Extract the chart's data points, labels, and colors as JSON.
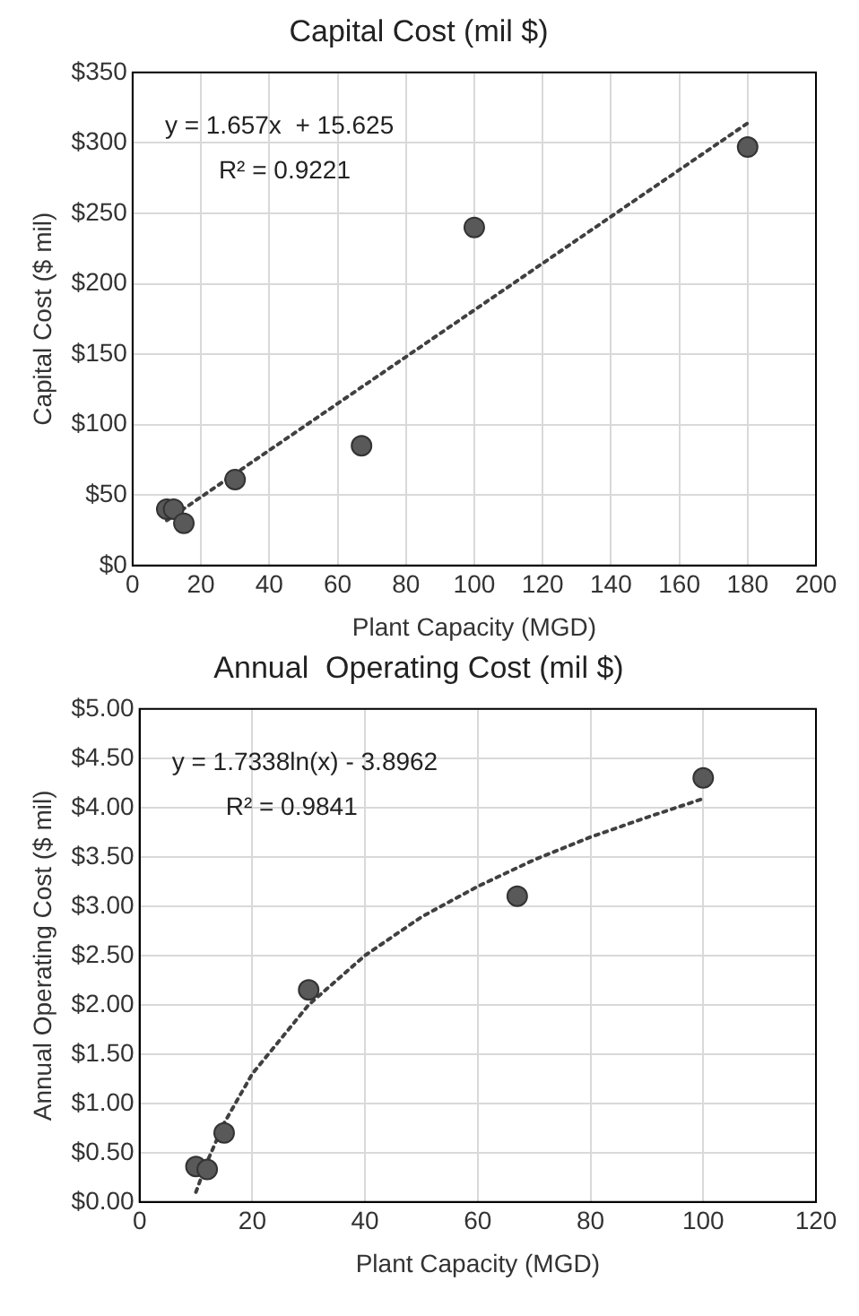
{
  "chart_data": [
    {
      "type": "scatter",
      "title": "Capital Cost (mil $)",
      "xlabel": "Plant Capacity (MGD)",
      "ylabel": "Capital Cost ($ mil)",
      "annotations": [
        "y = 1.657x  + 15.625",
        "R² = 0.9221"
      ],
      "series": [
        {
          "type": "scatter",
          "color": "#595959",
          "marker": "circle",
          "x": [
            10,
            12,
            15,
            30,
            67,
            100,
            180
          ],
          "values": [
            40,
            40,
            30,
            61,
            85,
            240,
            297
          ]
        },
        {
          "type": "line",
          "color": "#404040",
          "marker": "none",
          "line_style": "dotted",
          "x": [
            10,
            180
          ],
          "values": [
            32,
            314
          ]
        }
      ],
      "xlim": [
        0,
        200
      ],
      "xticks": [
        0,
        20,
        40,
        60,
        80,
        100,
        120,
        140,
        160,
        180,
        200
      ],
      "ylim": [
        0,
        350
      ],
      "yticks": [
        {
          "value": 0,
          "label": "$0"
        },
        {
          "value": 50,
          "label": "$50"
        },
        {
          "value": 100,
          "label": "$100"
        },
        {
          "value": 150,
          "label": "$150"
        },
        {
          "value": 200,
          "label": "$200"
        },
        {
          "value": 250,
          "label": "$250"
        },
        {
          "value": 300,
          "label": "$300"
        },
        {
          "value": 350,
          "label": "$350"
        }
      ],
      "grid": true
    },
    {
      "type": "scatter",
      "title": "Annual  Operating Cost (mil $)",
      "xlabel": "Plant Capacity (MGD)",
      "ylabel": "Annual Operating Cost ($ mil)",
      "annotations": [
        "y = 1.7338ln(x) - 3.8962",
        "R² = 0.9841"
      ],
      "series": [
        {
          "type": "scatter",
          "color": "#595959",
          "marker": "circle",
          "x": [
            10,
            12,
            15,
            30,
            67,
            100
          ],
          "values": [
            0.36,
            0.33,
            0.7,
            2.15,
            3.1,
            4.3
          ]
        },
        {
          "type": "line",
          "color": "#404040",
          "marker": "none",
          "line_style": "dotted",
          "x": [
            10,
            12,
            15,
            20,
            30,
            40,
            50,
            60,
            70,
            80,
            90,
            100
          ],
          "values": [
            0.1,
            0.41,
            0.8,
            1.3,
            2.0,
            2.5,
            2.89,
            3.2,
            3.47,
            3.7,
            3.9,
            4.09
          ]
        }
      ],
      "xlim": [
        0,
        120
      ],
      "xticks": [
        0,
        20,
        40,
        60,
        80,
        100,
        120
      ],
      "ylim": [
        0,
        5
      ],
      "yticks": [
        {
          "value": 0,
          "label": "$0.00"
        },
        {
          "value": 0.5,
          "label": "$0.50"
        },
        {
          "value": 1,
          "label": "$1.00"
        },
        {
          "value": 1.5,
          "label": "$1.50"
        },
        {
          "value": 2,
          "label": "$2.00"
        },
        {
          "value": 2.5,
          "label": "$2.50"
        },
        {
          "value": 3,
          "label": "$3.00"
        },
        {
          "value": 3.5,
          "label": "$3.50"
        },
        {
          "value": 4,
          "label": "$4.00"
        },
        {
          "value": 4.5,
          "label": "$4.50"
        },
        {
          "value": 5,
          "label": "$5.00"
        }
      ],
      "grid": true
    }
  ]
}
